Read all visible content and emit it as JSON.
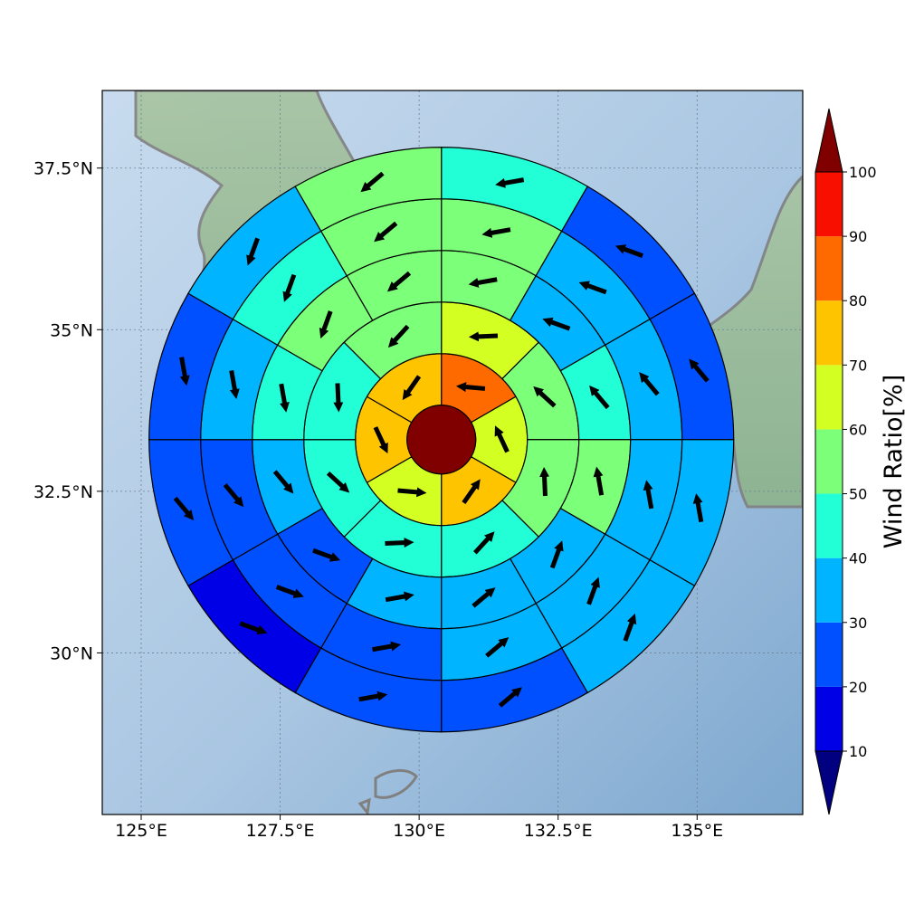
{
  "map": {
    "x_ticks": [
      "125°E",
      "127.5°E",
      "130°E",
      "132.5°E",
      "135°E"
    ],
    "x_tick_values": [
      125,
      127.5,
      130,
      132.5,
      135
    ],
    "y_ticks": [
      "37.5°N",
      "35°N",
      "32.5°N",
      "30°N"
    ],
    "y_tick_values": [
      37.5,
      35,
      32.5,
      30
    ],
    "lon_range": [
      124.3,
      136.9
    ],
    "lat_range": [
      27.5,
      38.7
    ],
    "gridlines": true,
    "basemap": "shaded-relief",
    "coastline_color": "#808080"
  },
  "colorbar": {
    "label": "Wind Ratio[%]",
    "ticks": [
      "10",
      "20",
      "30",
      "40",
      "50",
      "60",
      "70",
      "80",
      "90",
      "100"
    ],
    "tick_values": [
      10,
      20,
      30,
      40,
      50,
      60,
      70,
      80,
      90,
      100
    ],
    "extend": "both",
    "colors": [
      "#000080",
      "#0000e6",
      "#0050ff",
      "#00b4ff",
      "#22ffd6",
      "#7cff79",
      "#d4ff22",
      "#ffc400",
      "#ff6a00",
      "#f80f00",
      "#800000"
    ]
  },
  "wind_ratio_field": {
    "center": {
      "lon": 130.4,
      "lat": 33.3
    },
    "center_value": 100,
    "ring_count": 5,
    "rings": [
      {
        "ring": 1,
        "sector_count": 6,
        "values": [
          85,
          65,
          75,
          65,
          75,
          75
        ]
      },
      {
        "ring": 2,
        "sector_count": 8,
        "values": [
          65,
          55,
          55,
          45,
          45,
          45,
          45,
          55
        ]
      },
      {
        "ring": 3,
        "sector_count": 12,
        "values": [
          55,
          35,
          45,
          55,
          35,
          35,
          35,
          25,
          35,
          45,
          55,
          55
        ]
      },
      {
        "ring": 4,
        "sector_count": 12,
        "values": [
          55,
          35,
          35,
          35,
          35,
          35,
          25,
          25,
          25,
          35,
          45,
          55
        ]
      },
      {
        "ring": 5,
        "sector_count": 12,
        "values": [
          45,
          25,
          25,
          35,
          35,
          25,
          25,
          15,
          25,
          25,
          35,
          55
        ]
      }
    ],
    "arrow_color": "#000000"
  }
}
